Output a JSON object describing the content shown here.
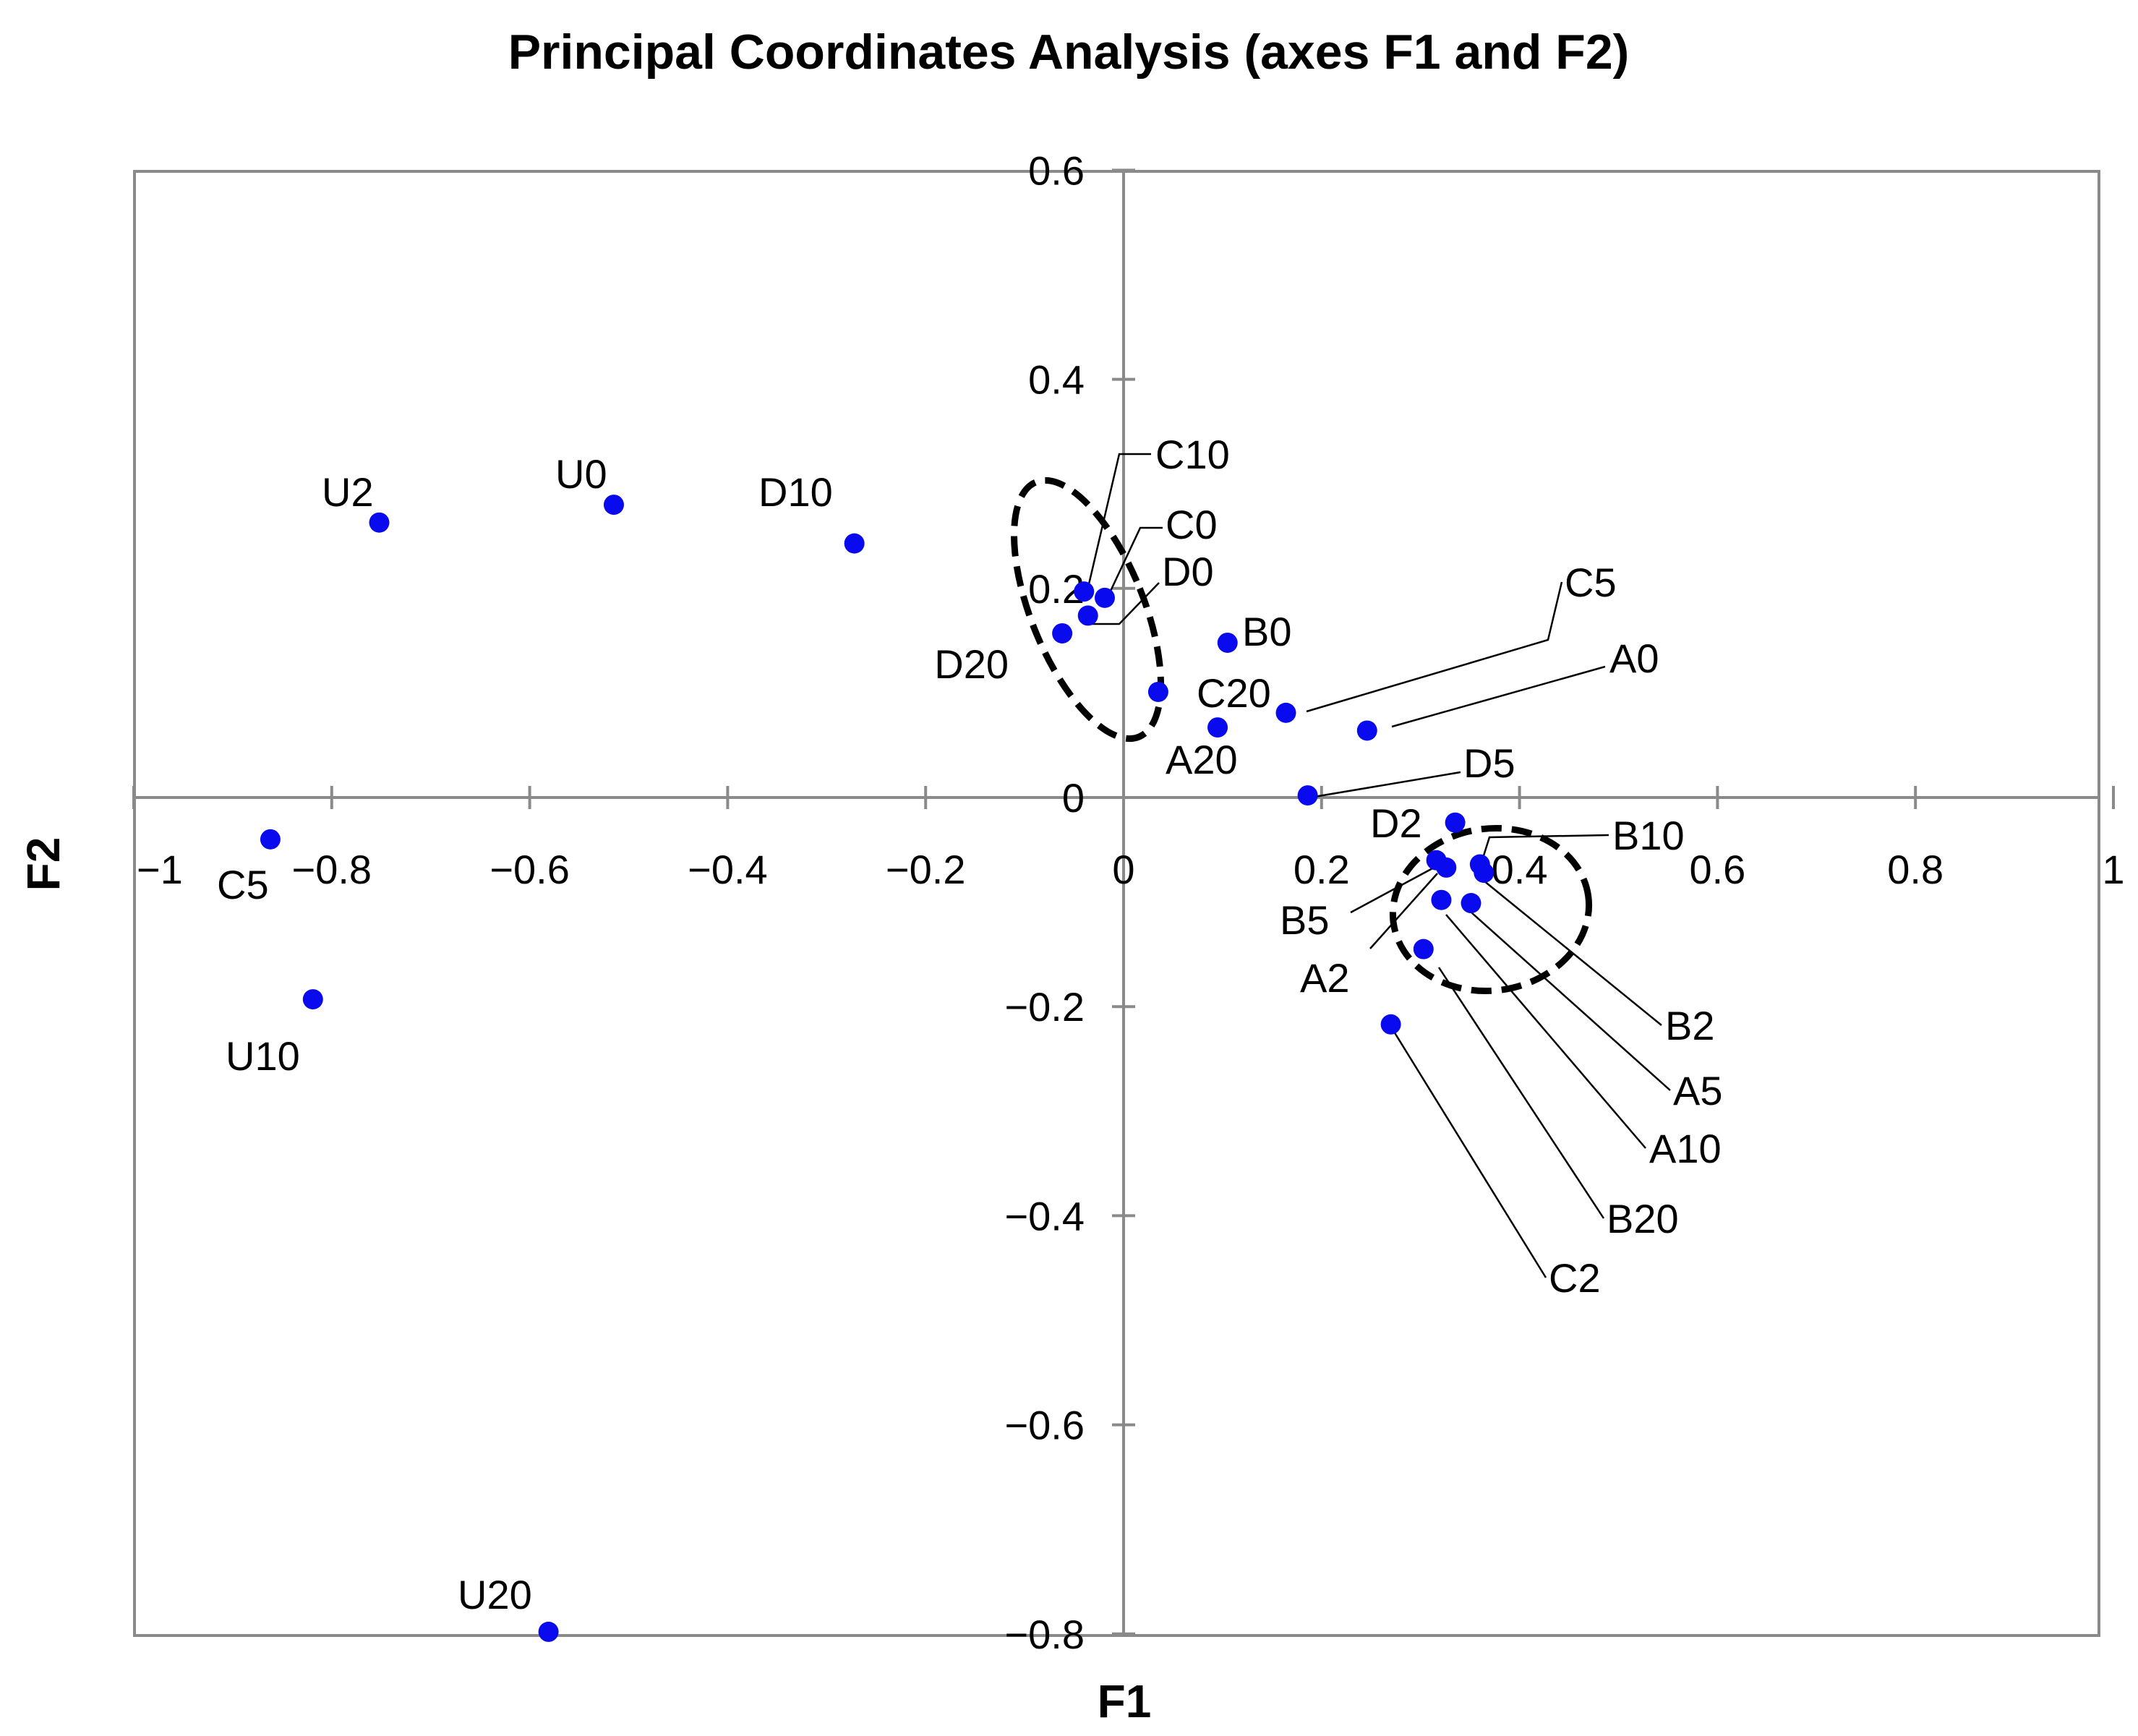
{
  "chart_data": {
    "type": "scatter",
    "title": "Principal Coordinates Analysis (axes F1 and F2)",
    "xlabel": "F1",
    "ylabel": "F2",
    "xlim": [
      -1,
      1
    ],
    "ylim": [
      -0.8,
      0.6
    ],
    "xticks": [
      -1,
      -0.8,
      -0.6,
      -0.4,
      -0.2,
      0,
      0.2,
      0.4,
      0.6,
      0.8,
      1
    ],
    "xtick_labels": [
      "−1",
      "−0.8",
      "−0.6",
      "−0.4",
      "−0.2",
      "0",
      "0.2",
      "0.4",
      "0.6",
      "0.8",
      "1"
    ],
    "yticks": [
      0.6,
      0.4,
      0.2,
      0,
      -0.2,
      -0.4,
      -0.6,
      -0.8
    ],
    "ytick_labels": [
      "0.6",
      "0.4",
      "0.2",
      "0",
      "−0.2",
      "−0.4",
      "−0.6",
      "−0.8"
    ],
    "grid": false,
    "marker_color": "#0a0aee",
    "points": [
      {
        "label": "U2",
        "x": -0.752,
        "y": 0.263
      },
      {
        "label": "U0",
        "x": -0.515,
        "y": 0.28
      },
      {
        "label": "D10",
        "x": -0.272,
        "y": 0.243
      },
      {
        "label": "C10",
        "x": -0.04,
        "y": 0.197
      },
      {
        "label": "C0",
        "x": -0.019,
        "y": 0.191
      },
      {
        "label": "D0",
        "x": -0.036,
        "y": 0.174
      },
      {
        "label": "D20",
        "x": -0.062,
        "y": 0.157
      },
      {
        "label": "B0",
        "x": 0.105,
        "y": 0.148
      },
      {
        "label": "C20",
        "x": 0.035,
        "y": 0.101
      },
      {
        "label": "A20",
        "x": 0.095,
        "y": 0.067
      },
      {
        "label": "C5",
        "x": 0.164,
        "y": 0.081
      },
      {
        "label": "A0",
        "x": 0.246,
        "y": 0.064
      },
      {
        "label": "D5",
        "x": 0.186,
        "y": 0.002
      },
      {
        "label": "D2",
        "x": 0.335,
        "y": -0.024
      },
      {
        "label": "B10",
        "x": 0.36,
        "y": -0.064
      },
      {
        "label": "B5",
        "x": 0.316,
        "y": -0.06
      },
      {
        "label": "A2",
        "x": 0.326,
        "y": -0.067
      },
      {
        "label": "B2",
        "x": 0.364,
        "y": -0.072
      },
      {
        "label": "A5",
        "x": 0.351,
        "y": -0.101
      },
      {
        "label": "A10",
        "x": 0.321,
        "y": -0.098
      },
      {
        "label": "B20",
        "x": 0.303,
        "y": -0.145
      },
      {
        "label": "C2",
        "x": 0.27,
        "y": -0.217
      },
      {
        "label": "C5",
        "x": -0.862,
        "y": -0.04
      },
      {
        "label": "U10",
        "x": -0.819,
        "y": -0.193
      },
      {
        "label": "U20",
        "x": -0.581,
        "y": -0.798
      }
    ]
  }
}
